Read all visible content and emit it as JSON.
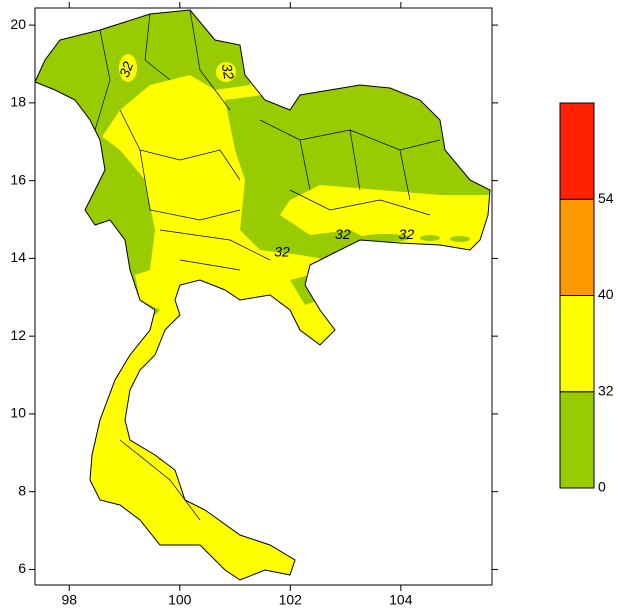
{
  "chart_data": {
    "type": "map",
    "xlim": [
      97.38,
      105.65
    ],
    "xticks": [
      98,
      100,
      102,
      104
    ],
    "ylim": [
      5.6,
      20.44
    ],
    "yticks": [
      6,
      8,
      10,
      12,
      14,
      16,
      18,
      20
    ],
    "colorbar": {
      "levels": [
        0,
        32,
        40,
        54
      ],
      "colors": [
        "#99cc00",
        "#ffff00",
        "#ff9900",
        "#ff2200"
      ]
    },
    "annotations": [
      "32",
      "32",
      "32",
      "32",
      "32"
    ]
  }
}
